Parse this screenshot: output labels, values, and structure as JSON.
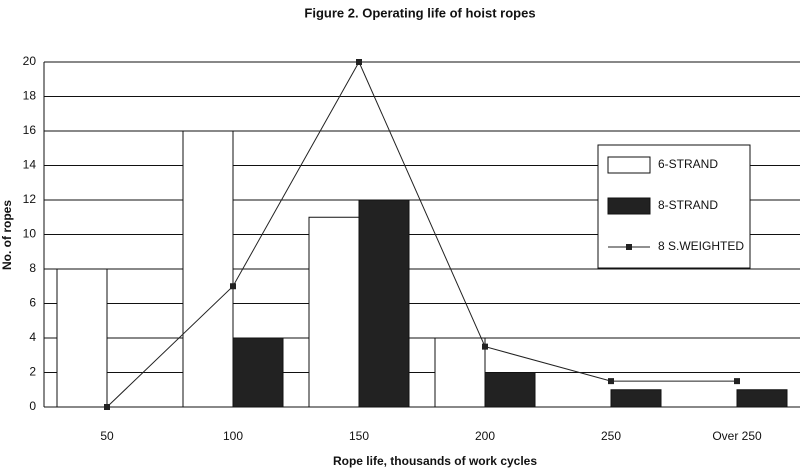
{
  "chart_data": {
    "type": "bar",
    "title": "Figure 2. Operating life of hoist ropes",
    "x_label": "Rope life, thousands of work cycles",
    "y_label": "No. of ropes",
    "categories": [
      "50",
      "100",
      "150",
      "200",
      "250",
      "Over 250"
    ],
    "series": [
      {
        "name": "6-STRAND",
        "type": "bar",
        "color": "#ffffff",
        "values": [
          8,
          16,
          11,
          4,
          0,
          0
        ]
      },
      {
        "name": "8-STRAND",
        "type": "bar",
        "color": "#222222",
        "values": [
          0,
          4,
          12,
          2,
          1,
          1
        ]
      },
      {
        "name": "8 S.WEIGHTED",
        "type": "line",
        "color": "#222222",
        "values": [
          0,
          7,
          20,
          3.5,
          1.5,
          1.5
        ]
      }
    ],
    "ylim": [
      0,
      20
    ],
    "yticks": [
      0,
      2,
      4,
      6,
      8,
      10,
      12,
      14,
      16,
      18,
      20
    ],
    "grid": true
  }
}
